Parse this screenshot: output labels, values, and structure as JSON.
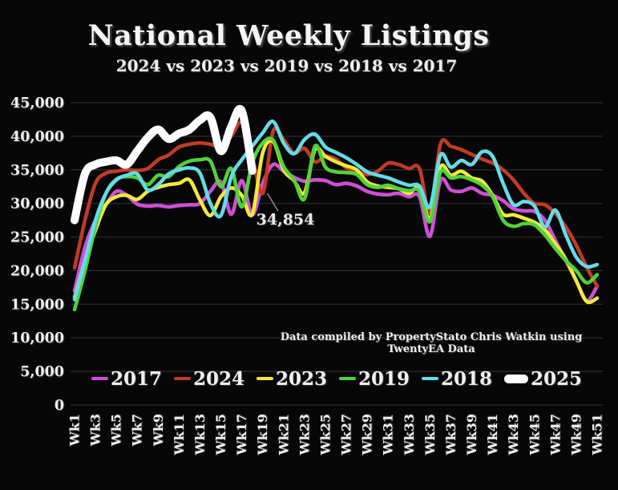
{
  "title": "National Weekly Listings",
  "subtitle": "2024 vs 2023 vs 2019 vs 2018 vs 2017",
  "attribution": "Data compiled by PropertyStato Chris Watkin using TwentyEA Data",
  "colors": {
    "background": "#070707",
    "grid": "#2f2f2f",
    "text": "#f0f0f0",
    "annotation_leader": "#9a9a9a",
    "series_2017": "#cf4fd8",
    "series_2024": "#c23b24",
    "series_2023": "#f2e93c",
    "series_2019": "#53d13a",
    "series_2018": "#63dcea",
    "series_2025": "#ffffff"
  },
  "chart_data": {
    "type": "line",
    "x_unit": "week",
    "weeks": 51,
    "x_tick_labels": [
      "Wk1",
      "Wk3",
      "Wk5",
      "Wk7",
      "Wk9",
      "Wk11",
      "Wk13",
      "Wk15",
      "Wk17",
      "Wk19",
      "Wk21",
      "Wk23",
      "Wk25",
      "Wk27",
      "Wk29",
      "Wk31",
      "Wk33",
      "Wk35",
      "Wk37",
      "Wk39",
      "Wk41",
      "Wk43",
      "Wk45",
      "Wk47",
      "Wk49",
      "Wk51"
    ],
    "ylim": [
      0,
      45000
    ],
    "y_tick_step": 5000,
    "y_tick_labels": [
      "0",
      "5,000",
      "10,000",
      "15,000",
      "20,000",
      "25,000",
      "30,000",
      "35,000",
      "40,000",
      "45,000"
    ],
    "grid": true,
    "legend_position": "bottom",
    "legend_order": [
      "2017",
      "2024",
      "2023",
      "2019",
      "2018",
      "2025"
    ],
    "annotation": {
      "label": "34,854",
      "series": "2025",
      "week": 18,
      "value": 34854
    },
    "series": [
      {
        "name": "2017",
        "color": "#cf4fd8",
        "stroke_width": 4.5,
        "values": [
          17000,
          23500,
          27500,
          29800,
          31800,
          31200,
          29900,
          29600,
          29700,
          29500,
          29700,
          29800,
          30000,
          31800,
          33200,
          28400,
          33400,
          28300,
          33000,
          35800,
          34800,
          33900,
          33300,
          33500,
          33400,
          32800,
          33000,
          32600,
          31800,
          31400,
          31300,
          31500,
          31000,
          31000,
          25100,
          33400,
          32000,
          31800,
          32300,
          31500,
          31200,
          30400,
          29200,
          28900,
          28800,
          27500,
          24500,
          21500,
          18500,
          15500,
          17700
        ]
      },
      {
        "name": "2024",
        "color": "#c23b24",
        "stroke_width": 4.5,
        "values": [
          20400,
          27500,
          33000,
          34500,
          34800,
          35000,
          34900,
          35200,
          36500,
          37200,
          38400,
          38800,
          39000,
          38800,
          38500,
          40000,
          42000,
          37000,
          31500,
          40800,
          39500,
          37500,
          38200,
          36200,
          37000,
          36600,
          35300,
          34800,
          34300,
          34800,
          36000,
          35800,
          35200,
          35200,
          28700,
          38800,
          38500,
          38000,
          37300,
          36600,
          36000,
          35000,
          33500,
          31500,
          30000,
          29800,
          28500,
          26500,
          23800,
          20500,
          17700
        ]
      },
      {
        "name": "2023",
        "color": "#f2e93c",
        "stroke_width": 4.5,
        "values": [
          16000,
          21500,
          26000,
          29800,
          31000,
          31200,
          30600,
          31800,
          32400,
          32800,
          33000,
          33500,
          30500,
          28200,
          31000,
          32300,
          31200,
          28400,
          37500,
          39200,
          35000,
          33400,
          31600,
          38000,
          37000,
          36200,
          35600,
          35000,
          33200,
          32600,
          32400,
          32200,
          31500,
          32300,
          27700,
          35400,
          34200,
          34800,
          33800,
          33300,
          31200,
          28400,
          28300,
          27800,
          27200,
          26100,
          24000,
          21700,
          18500,
          15400,
          15900
        ]
      },
      {
        "name": "2019",
        "color": "#53d13a",
        "stroke_width": 4.5,
        "values": [
          14200,
          20000,
          26500,
          31500,
          33600,
          34000,
          33800,
          32800,
          34200,
          34000,
          35500,
          36300,
          36500,
          36300,
          32500,
          35200,
          29500,
          36000,
          39000,
          39400,
          35500,
          33500,
          30700,
          38500,
          35400,
          34700,
          34600,
          34300,
          32800,
          32400,
          32700,
          32200,
          31900,
          31800,
          27300,
          34600,
          33800,
          34000,
          33500,
          32700,
          31000,
          27500,
          26600,
          27000,
          26800,
          25300,
          23300,
          21500,
          20000,
          18200,
          19400
        ]
      },
      {
        "name": "2018",
        "color": "#63dcea",
        "stroke_width": 4.5,
        "values": [
          15700,
          21500,
          27500,
          31500,
          33500,
          34200,
          34400,
          32000,
          32800,
          34400,
          35000,
          35300,
          34500,
          30000,
          28200,
          34000,
          36500,
          38500,
          40500,
          42200,
          39000,
          37400,
          39500,
          40300,
          38400,
          37600,
          36800,
          35800,
          34700,
          34200,
          33800,
          33200,
          32700,
          32600,
          29500,
          37200,
          35400,
          36400,
          35800,
          37700,
          37000,
          33000,
          29800,
          30300,
          29600,
          26500,
          29000,
          25300,
          22000,
          20600,
          20900
        ]
      },
      {
        "name": "2025",
        "color": "#ffffff",
        "stroke_width": 10,
        "values": [
          27500,
          34400,
          35800,
          36200,
          36400,
          35800,
          37800,
          39800,
          41000,
          39600,
          40400,
          41000,
          42400,
          42800,
          37800,
          41500,
          43800,
          34854
        ]
      }
    ]
  }
}
